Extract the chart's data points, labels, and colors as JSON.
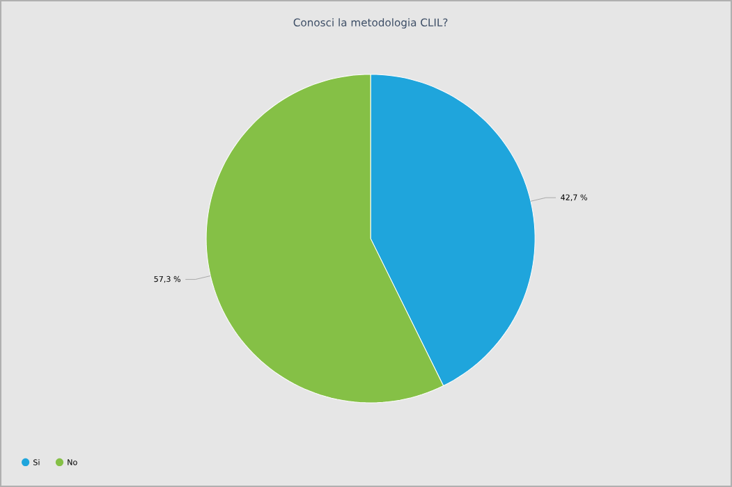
{
  "chart_data": {
    "type": "pie",
    "title": "Conosci la metodologia CLIL?",
    "categories": [
      "Si",
      "No"
    ],
    "values": [
      42.7,
      57.3
    ],
    "colors": [
      "#1fa5dc",
      "#85c046"
    ],
    "value_labels": [
      "42,7 %",
      "57,3 %"
    ],
    "legend": "bottom left"
  }
}
